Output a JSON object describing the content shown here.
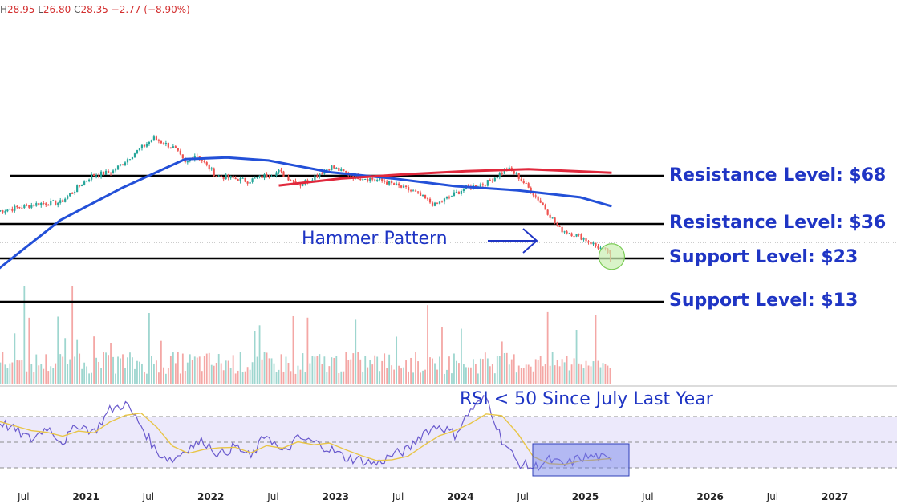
{
  "header": {
    "high_key": "H",
    "high": "28.95",
    "low_key": "L",
    "low": "26.80",
    "close_key": "C",
    "close": "28.35",
    "change": "−2.77 (−8.90%)"
  },
  "annotations": {
    "resistance_68": "Resistance Level: $68",
    "resistance_36": "Resistance Level: $36",
    "support_23": "Support Level: $23",
    "support_13": "Support Level: $13",
    "hammer": "Hammer Pattern",
    "rsi_note": "RSI < 50 Since July Last Year"
  },
  "colors": {
    "up": "#26a69a",
    "down": "#ef5350",
    "ma50": "#2350d8",
    "ma200": "#e0283c",
    "level_line": "#000000",
    "annotation": "#1f35c4",
    "rsi_line": "#6a5acd",
    "rsi_signal": "#e8c547",
    "rsi_band": "#ece9fb"
  },
  "chart_data": {
    "type": "candlestick",
    "x_ticks": [
      "Jul",
      "2021",
      "Jul",
      "2022",
      "Jul",
      "2023",
      "Jul",
      "2024",
      "Jul",
      "2025",
      "Jul",
      "2026",
      "Jul",
      "2027"
    ],
    "year_ticks": [
      "2021",
      "2022",
      "2023",
      "2024",
      "2025",
      "2026",
      "2027"
    ],
    "levels": [
      {
        "label": "Resistance Level: $68",
        "value": 68
      },
      {
        "label": "Resistance Level: $36",
        "value": 36
      },
      {
        "label": "Support Level: $23",
        "value": 23
      },
      {
        "label": "Support Level: $13",
        "value": 13
      }
    ],
    "last_candle": {
      "high": 28.95,
      "low": 26.8,
      "close": 28.35,
      "change": -2.77,
      "change_pct": -8.9
    },
    "price_path": [
      {
        "date": "2020-05",
        "close": 58
      },
      {
        "date": "2020-09",
        "close": 66
      },
      {
        "date": "2020-11",
        "close": 67
      },
      {
        "date": "2021-02",
        "close": 105
      },
      {
        "date": "2021-04",
        "close": 112
      },
      {
        "date": "2021-06",
        "close": 150
      },
      {
        "date": "2021-08",
        "close": 195
      },
      {
        "date": "2021-10",
        "close": 165
      },
      {
        "date": "2021-11",
        "close": 128
      },
      {
        "date": "2021-12",
        "close": 150
      },
      {
        "date": "2022-02",
        "close": 105
      },
      {
        "date": "2022-05",
        "close": 96
      },
      {
        "date": "2022-08",
        "close": 112
      },
      {
        "date": "2022-10",
        "close": 90
      },
      {
        "date": "2023-01",
        "close": 122
      },
      {
        "date": "2023-03",
        "close": 105
      },
      {
        "date": "2023-06",
        "close": 96
      },
      {
        "date": "2023-09",
        "close": 80
      },
      {
        "date": "2023-11",
        "close": 64
      },
      {
        "date": "2024-02",
        "close": 86
      },
      {
        "date": "2024-04",
        "close": 93
      },
      {
        "date": "2024-06",
        "close": 118
      },
      {
        "date": "2024-07",
        "close": 104
      },
      {
        "date": "2024-09",
        "close": 70
      },
      {
        "date": "2024-11",
        "close": 43
      },
      {
        "date": "2025-01",
        "close": 38
      },
      {
        "date": "2025-03",
        "close": 31
      },
      {
        "date": "2025-04",
        "close": 28.35
      }
    ],
    "moving_averages": [
      {
        "name": "50-period",
        "path": [
          {
            "date": "2020-05",
            "close": 22
          },
          {
            "date": "2020-11",
            "close": 50
          },
          {
            "date": "2021-05",
            "close": 86
          },
          {
            "date": "2021-11",
            "close": 138
          },
          {
            "date": "2022-03",
            "close": 142
          },
          {
            "date": "2022-07",
            "close": 135
          },
          {
            "date": "2023-01",
            "close": 111
          },
          {
            "date": "2023-07",
            "close": 100
          },
          {
            "date": "2024-01",
            "close": 88
          },
          {
            "date": "2024-07",
            "close": 82
          },
          {
            "date": "2025-01",
            "close": 73
          },
          {
            "date": "2025-04",
            "close": 63
          }
        ]
      },
      {
        "name": "200-period",
        "path": [
          {
            "date": "2022-08",
            "close": 89
          },
          {
            "date": "2023-02",
            "close": 100
          },
          {
            "date": "2023-08",
            "close": 107
          },
          {
            "date": "2024-02",
            "close": 113
          },
          {
            "date": "2024-08",
            "close": 117
          },
          {
            "date": "2025-04",
            "close": 110
          }
        ]
      }
    ],
    "rsi": {
      "range": [
        0,
        100
      ],
      "band": [
        30,
        70
      ],
      "midline": 50,
      "values": [
        66,
        59,
        52,
        62,
        50,
        64,
        58,
        75,
        80,
        63,
        42,
        36,
        46,
        51,
        40,
        47,
        38,
        57,
        41,
        53,
        50,
        45,
        38,
        36,
        33,
        40,
        44,
        58,
        63,
        56,
        75,
        85,
        52,
        34,
        30,
        36,
        32,
        38,
        39,
        35
      ]
    }
  }
}
